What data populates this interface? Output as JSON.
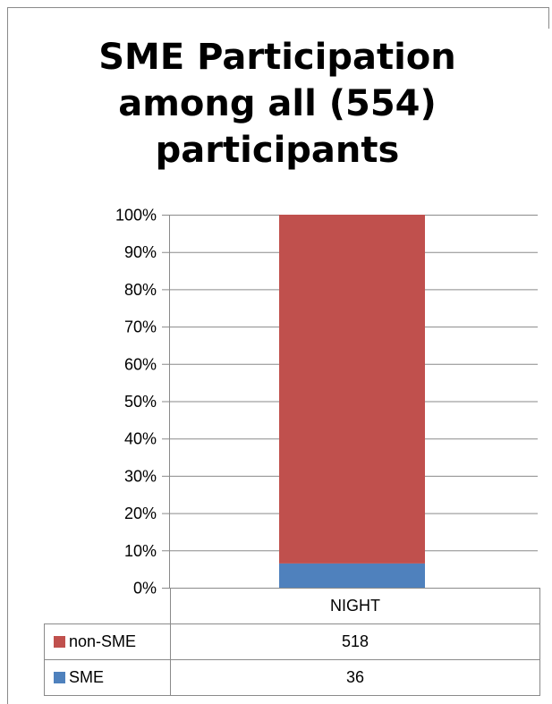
{
  "chart_data": {
    "type": "bar",
    "stacked": "percent",
    "title_lines": [
      "SME Participation",
      "among all (554)",
      "participants"
    ],
    "categories": [
      "NIGHT"
    ],
    "series": [
      {
        "name": "non-SME",
        "values": [
          518
        ],
        "color": "#c0504d"
      },
      {
        "name": "SME",
        "values": [
          36
        ],
        "color": "#4f81bd"
      }
    ],
    "stack_order": [
      "SME",
      "non-SME"
    ],
    "y_ticks": [
      "0%",
      "10%",
      "20%",
      "30%",
      "40%",
      "50%",
      "60%",
      "70%",
      "80%",
      "90%",
      "100%"
    ],
    "ylim": [
      0,
      100
    ],
    "grid": true,
    "legend": "data-table-below"
  }
}
